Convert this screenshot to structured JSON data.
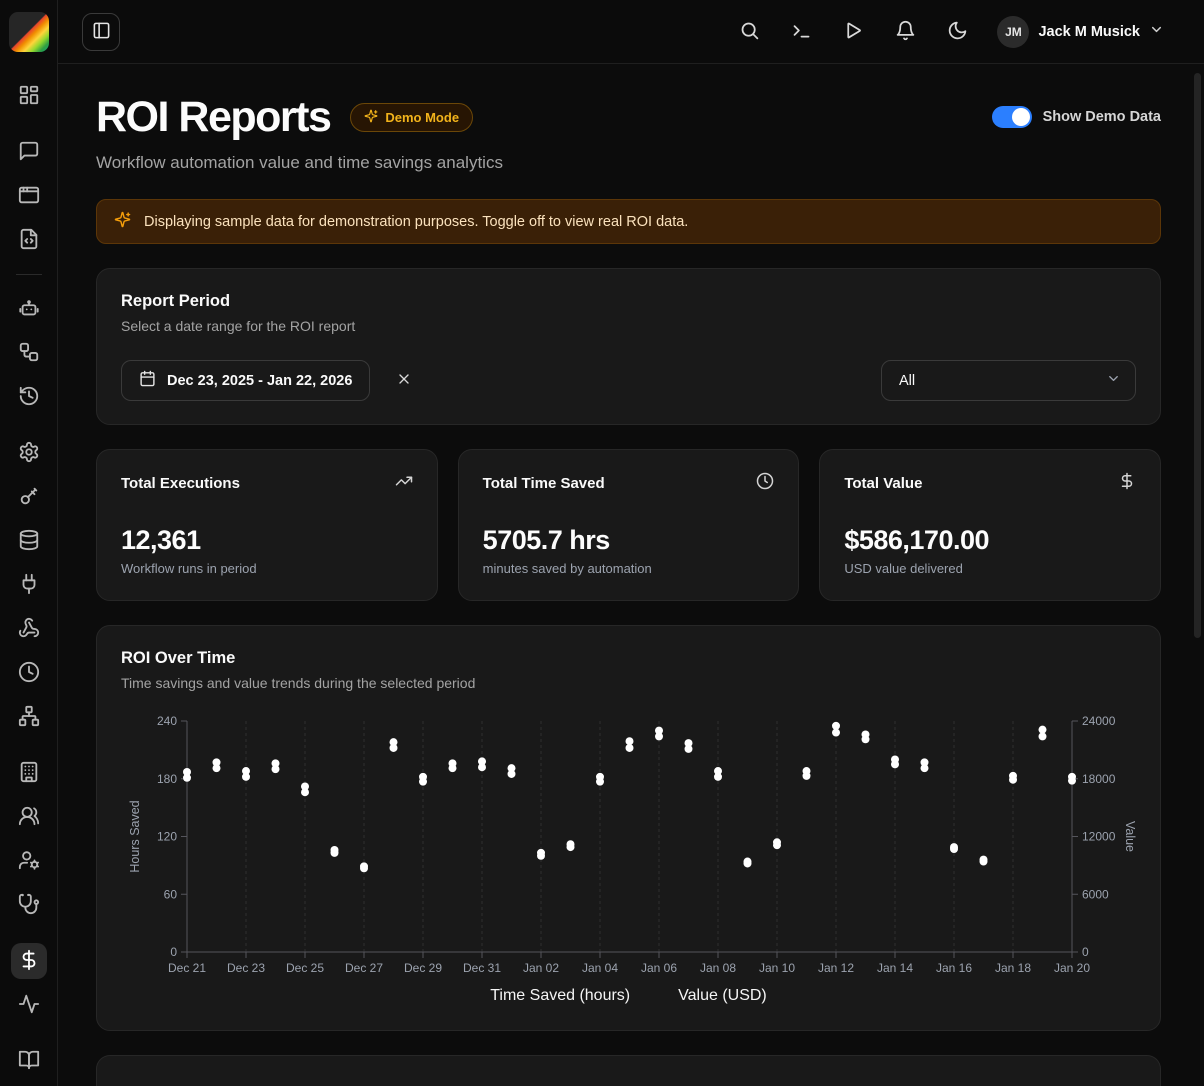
{
  "topbar": {
    "user": {
      "initials": "JM",
      "name": "Jack M Musick"
    },
    "icons": [
      "panel-left",
      "search",
      "terminal",
      "play",
      "bell",
      "moon",
      "chevron-down"
    ]
  },
  "sidebar": {
    "items": [
      "dashboard",
      "chat",
      "app-window",
      "file-code",
      "bot",
      "workflow",
      "history",
      "settings",
      "key",
      "database",
      "plug",
      "webhook",
      "clock",
      "network",
      "building",
      "users",
      "user-cog",
      "stethoscope",
      "dollar",
      "activity",
      "book"
    ],
    "active_item": "dollar"
  },
  "page": {
    "title": "ROI Reports",
    "badge": "Demo Mode",
    "subtitle": "Workflow automation value and time savings analytics",
    "toggle_label": "Show Demo Data",
    "toggle_on": true,
    "banner": "Displaying sample data for demonstration purposes. Toggle off to view real ROI data."
  },
  "report_period": {
    "title": "Report Period",
    "subtitle": "Select a date range for the ROI report",
    "date_range": "Dec 23, 2025 - Jan 22, 2026",
    "filter_value": "All"
  },
  "stats": [
    {
      "title": "Total Executions",
      "icon": "trending-up",
      "value": "12,361",
      "caption": "Workflow runs in period"
    },
    {
      "title": "Total Time Saved",
      "icon": "clock",
      "value": "5705.7 hrs",
      "caption": "minutes saved by automation"
    },
    {
      "title": "Total Value",
      "icon": "dollar-sign",
      "value": "$586,170.00",
      "caption": "USD value delivered"
    }
  ],
  "chart": {
    "title": "ROI Over Time",
    "subtitle": "Time savings and value trends during the selected period"
  },
  "chart_data": {
    "type": "scatter",
    "x": [
      "Dec 21",
      "Dec 22",
      "Dec 23",
      "Dec 24",
      "Dec 25",
      "Dec 26",
      "Dec 27",
      "Dec 28",
      "Dec 29",
      "Dec 30",
      "Dec 31",
      "Jan 01",
      "Jan 02",
      "Jan 03",
      "Jan 04",
      "Jan 05",
      "Jan 06",
      "Jan 07",
      "Jan 08",
      "Jan 09",
      "Jan 10",
      "Jan 11",
      "Jan 12",
      "Jan 13",
      "Jan 14",
      "Jan 15",
      "Jan 16",
      "Jan 17",
      "Jan 18",
      "Jan 19",
      "Jan 20"
    ],
    "x_tick_labels": [
      "Dec 21",
      "Dec 23",
      "Dec 25",
      "Dec 27",
      "Dec 29",
      "Dec 31",
      "Jan 02",
      "Jan 04",
      "Jan 06",
      "Jan 08",
      "Jan 10",
      "Jan 12",
      "Jan 14",
      "Jan 16",
      "Jan 18",
      "Jan 20"
    ],
    "series": [
      {
        "name": "Time Saved (hours)",
        "axis": "left",
        "values": [
          187,
          197,
          188,
          196,
          172,
          106,
          89,
          218,
          182,
          196,
          198,
          191,
          103,
          112,
          182,
          219,
          230,
          217,
          188,
          94,
          114,
          188,
          235,
          226,
          200,
          197,
          109,
          96,
          183,
          231,
          182
        ]
      },
      {
        "name": "Value (USD)",
        "axis": "right",
        "values": [
          18100,
          19100,
          18200,
          19000,
          16600,
          10300,
          8700,
          21200,
          17700,
          19100,
          19200,
          18500,
          10000,
          10900,
          17700,
          21200,
          22400,
          21100,
          18200,
          9200,
          11100,
          18300,
          22800,
          22100,
          19500,
          19100,
          10700,
          9400,
          17900,
          22400,
          17800
        ]
      }
    ],
    "left_axis": {
      "label": "Hours Saved",
      "ticks": [
        0,
        60,
        120,
        180,
        240
      ],
      "range": [
        0,
        240
      ]
    },
    "right_axis": {
      "label": "Value",
      "ticks": [
        0,
        6000,
        12000,
        18000,
        24000
      ],
      "range": [
        0,
        24000
      ]
    },
    "legend_position": "bottom",
    "grid": "vertical-dashed",
    "point_color": "#ffffff"
  },
  "colors": {
    "background": "#0c0c0c",
    "card": "#191919",
    "border": "#272727",
    "accent_blue": "#2b7fff",
    "amber": "#f2b31b",
    "banner_bg": "#3a2007",
    "banner_text": "#fbe2bd",
    "muted_text": "#9ca3af",
    "point": "#ffffff"
  }
}
